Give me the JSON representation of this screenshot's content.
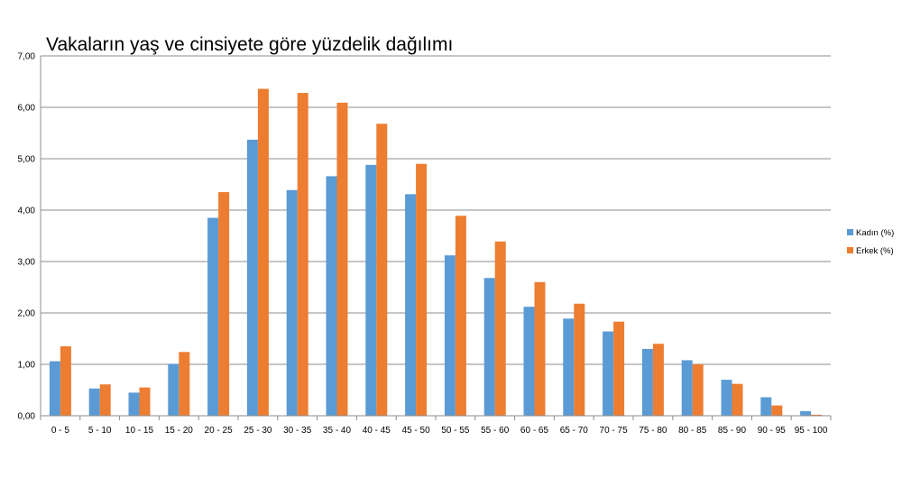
{
  "chart_data": {
    "type": "bar",
    "title": "Vakaların yaş ve cinsiyete göre yüzdelik dağılımı",
    "xlabel": "",
    "ylabel": "",
    "ylim": [
      0,
      7
    ],
    "yticks": [
      "0,00",
      "1,00",
      "2,00",
      "3,00",
      "4,00",
      "5,00",
      "6,00",
      "7,00"
    ],
    "grid": true,
    "legend_position": "right",
    "categories": [
      "0 - 5",
      "5 - 10",
      "10 - 15",
      "15 - 20",
      "20 - 25",
      "25 - 30",
      "30 - 35",
      "35 - 40",
      "40 - 45",
      "45 - 50",
      "50 - 55",
      "55 - 60",
      "60 - 65",
      "65 - 70",
      "70 - 75",
      "75 - 80",
      "80 - 85",
      "85 - 90",
      "90 - 95",
      "95 - 100"
    ],
    "series": [
      {
        "name": "Kadın (%)",
        "color": "#5b9bd5",
        "values": [
          1.06,
          0.53,
          0.45,
          1.01,
          3.85,
          5.37,
          4.39,
          4.66,
          4.88,
          4.31,
          3.12,
          2.68,
          2.12,
          1.89,
          1.64,
          1.3,
          1.08,
          0.7,
          0.36,
          0.09
        ]
      },
      {
        "name": "Erkek (%)",
        "color": "#ed7d31",
        "values": [
          1.35,
          0.61,
          0.55,
          1.24,
          4.35,
          6.36,
          6.28,
          6.09,
          5.68,
          4.9,
          3.89,
          3.39,
          2.6,
          2.18,
          1.83,
          1.4,
          1.0,
          0.62,
          0.2,
          0.02
        ]
      }
    ]
  }
}
